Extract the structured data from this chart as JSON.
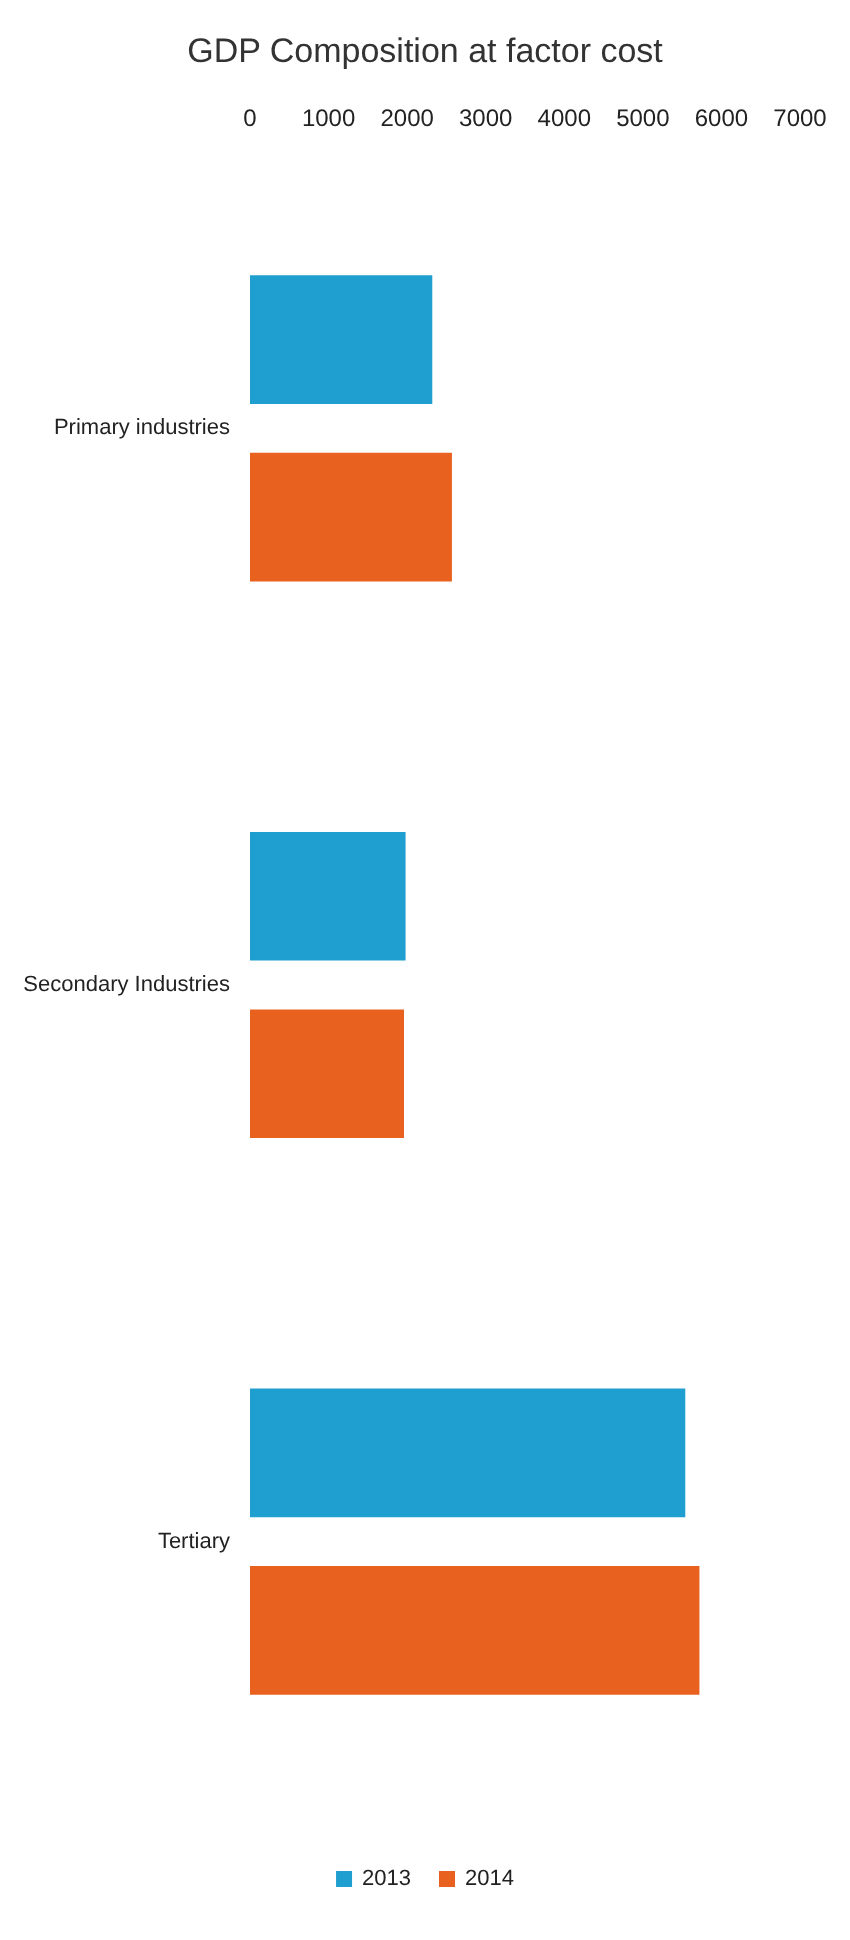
{
  "chart_data": {
    "type": "bar",
    "orientation": "horizontal",
    "title": "GDP Composition at factor cost",
    "categories": [
      "Primary industries",
      "Secondary Industries",
      "Tertiary"
    ],
    "series": [
      {
        "name": "2013",
        "color": "#1e9fcf",
        "values": [
          2320,
          1980,
          5540
        ]
      },
      {
        "name": "2014",
        "color": "#e8611e",
        "values": [
          2570,
          1960,
          5720
        ]
      }
    ],
    "xlim": [
      0,
      7000
    ],
    "xticks": [
      0,
      1000,
      2000,
      3000,
      4000,
      5000,
      6000,
      7000
    ],
    "grid": false,
    "legend": "bottom"
  }
}
